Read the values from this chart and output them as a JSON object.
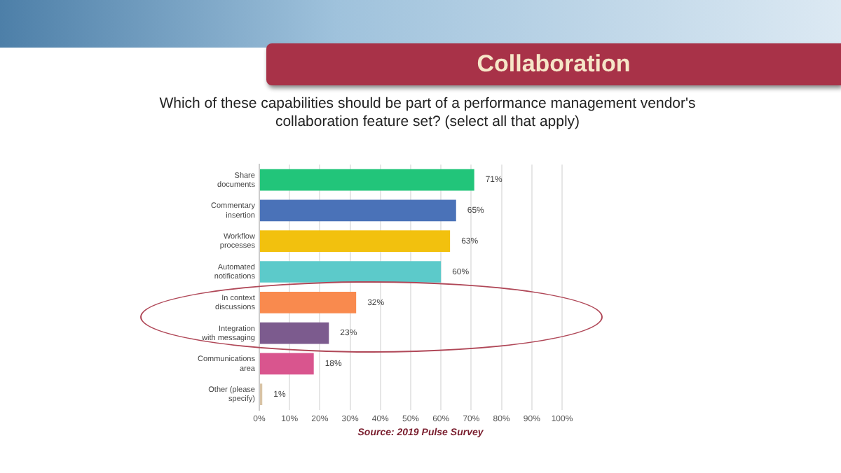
{
  "chart_data": {
    "type": "bar",
    "orientation": "horizontal",
    "title": "Collaboration",
    "subtitle": "Which of these capabilities should be part of a performance management vendor's collaboration feature set? (select all that apply)",
    "categories": [
      "Share documents",
      "Commentary insertion",
      "Workflow processes",
      "Automated notifications",
      "In context discussions",
      "Integration with messaging",
      "Communications area",
      "Other (please specify)"
    ],
    "values": [
      71,
      65,
      63,
      60,
      32,
      23,
      18,
      1
    ],
    "colors": [
      "#22c57a",
      "#4a72b8",
      "#f2c10e",
      "#5ccaca",
      "#f98a4e",
      "#7c5b8e",
      "#d9558e",
      "#d8c3a5"
    ],
    "value_labels": [
      "71%",
      "65%",
      "63%",
      "60%",
      "32%",
      "23%",
      "18%",
      "1%"
    ],
    "xlim": [
      0,
      100
    ],
    "xticks": [
      {
        "value": 0,
        "label": "0%"
      },
      {
        "value": 10,
        "label": "10%"
      },
      {
        "value": 20,
        "label": "20%"
      },
      {
        "value": 30,
        "label": "30%"
      },
      {
        "value": 40,
        "label": "40%"
      },
      {
        "value": 50,
        "label": "50%"
      },
      {
        "value": 60,
        "label": "60%"
      },
      {
        "value": 70,
        "label": "70%"
      },
      {
        "value": 80,
        "label": "80%"
      },
      {
        "value": 90,
        "label": "90%"
      },
      {
        "value": 100,
        "label": "100%"
      }
    ],
    "grid": "x",
    "legend": false,
    "annotations": [
      "Source: 2019 Pulse Survey"
    ]
  }
}
